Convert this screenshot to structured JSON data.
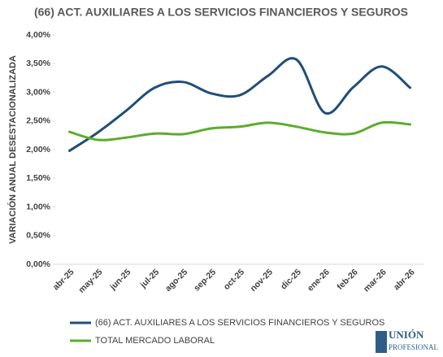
{
  "chart_data": {
    "type": "line",
    "title": "(66) ACT. AUXILIARES A LOS SERVICIOS FINANCIEROS Y SEGUROS",
    "y_label": "VARIACIÓN ANUAL DESESTACIONALIZADA",
    "categories": [
      "abr-25",
      "may-25",
      "jun-25",
      "jul-25",
      "ago-25",
      "sep-25",
      "oct-25",
      "nov-25",
      "dic-25",
      "ene-26",
      "feb-26",
      "mar-26",
      "abr-26"
    ],
    "series": [
      {
        "name": "(66) ACT. AUXILIARES A LOS SERVICIOS FINANCIEROS Y SEGUROS",
        "color": "#1f4e79",
        "values": [
          1.98,
          2.3,
          2.68,
          3.08,
          3.18,
          2.98,
          2.95,
          3.29,
          3.57,
          2.64,
          3.09,
          3.45,
          3.08
        ]
      },
      {
        "name": "TOTAL MERCADO LABORAL",
        "color": "#5aad2d",
        "values": [
          2.31,
          2.17,
          2.21,
          2.28,
          2.27,
          2.37,
          2.4,
          2.47,
          2.4,
          2.3,
          2.28,
          2.47,
          2.44
        ]
      }
    ],
    "ylim": [
      0,
      4
    ],
    "yticks": [
      {
        "value": 0,
        "label": "0,00%"
      },
      {
        "value": 0.5,
        "label": "0,50%"
      },
      {
        "value": 1,
        "label": "1,00%"
      },
      {
        "value": 1.5,
        "label": "1,50%"
      },
      {
        "value": 2,
        "label": "2,00%"
      },
      {
        "value": 2.5,
        "label": "2,50%"
      },
      {
        "value": 3,
        "label": "3,00%"
      },
      {
        "value": 3.5,
        "label": "3,50%"
      },
      {
        "value": 4,
        "label": "4,00%"
      }
    ],
    "grid": false,
    "legend": "bottom"
  },
  "logo": {
    "name": "UNIÓN",
    "subtitle": "PROFESIONAL"
  }
}
